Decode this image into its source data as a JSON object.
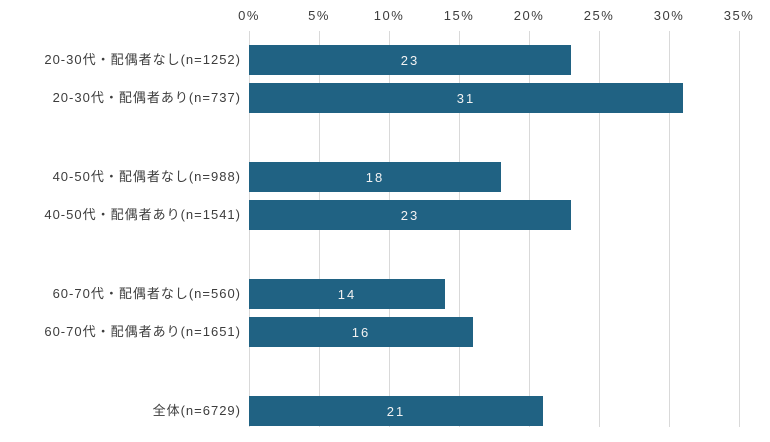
{
  "chart_data": {
    "type": "bar",
    "orientation": "horizontal",
    "title": "",
    "xlabel": "",
    "ylabel": "",
    "xlim": [
      0,
      35
    ],
    "grid": true,
    "axis_position": "top",
    "bar_color": "#206283",
    "gridline_color": "#d9d9d9",
    "value_label_color": "#f2f2f2",
    "axis_text_color": "#3d3d3d",
    "x_ticks": [
      "0%",
      "5%",
      "10%",
      "15%",
      "20%",
      "25%",
      "30%",
      "35%"
    ],
    "x_tick_values": [
      0,
      5,
      10,
      15,
      20,
      25,
      30,
      35
    ],
    "categories": [
      "20-30代・配偶者なし(n=1252)",
      "20-30代・配偶者あり(n=737)",
      "40-50代・配偶者なし(n=988)",
      "40-50代・配偶者あり(n=1541)",
      "60-70代・配偶者なし(n=560)",
      "60-70代・配偶者あり(n=1651)",
      "全体(n=6729)"
    ],
    "values": [
      23,
      31,
      18,
      23,
      14,
      16,
      21
    ],
    "rows": [
      {
        "label": "20-30代・配偶者なし(n=1252)",
        "value": 23,
        "group": 0
      },
      {
        "label": "20-30代・配偶者あり(n=737)",
        "value": 31,
        "group": 0
      },
      {
        "label": "40-50代・配偶者なし(n=988)",
        "value": 18,
        "group": 1
      },
      {
        "label": "40-50代・配偶者あり(n=1541)",
        "value": 23,
        "group": 1
      },
      {
        "label": "60-70代・配偶者なし(n=560)",
        "value": 14,
        "group": 2
      },
      {
        "label": "60-70代・配偶者あり(n=1651)",
        "value": 16,
        "group": 2
      },
      {
        "label": "全体(n=6729)",
        "value": 21,
        "group": 3
      }
    ]
  }
}
